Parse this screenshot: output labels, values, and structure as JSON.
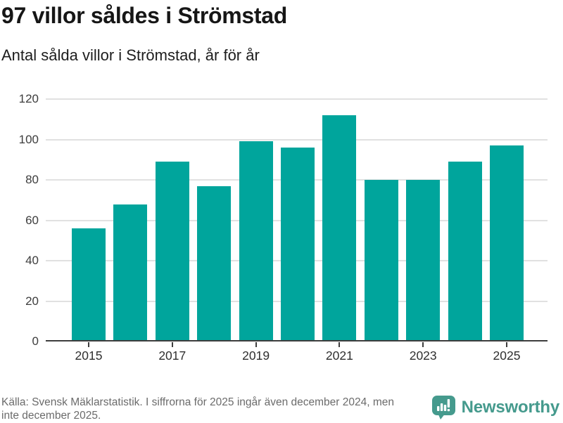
{
  "header": {
    "title": "97 villor såldes i Strömstad",
    "subtitle": "Antal sålda villor i Strömstad, år för år"
  },
  "chart_data": {
    "type": "bar",
    "title": "97 villor såldes i Strömstad",
    "subtitle": "Antal sålda villor i Strömstad, år för år",
    "categories": [
      "2015",
      "2016",
      "2017",
      "2018",
      "2019",
      "2020",
      "2021",
      "2022",
      "2023",
      "2024",
      "2025"
    ],
    "values": [
      56,
      68,
      89,
      77,
      99,
      96,
      112,
      80,
      80,
      89,
      97
    ],
    "xlabel": "",
    "ylabel": "",
    "ylim": [
      0,
      120
    ],
    "yticks": [
      0,
      20,
      40,
      60,
      80,
      100,
      120
    ],
    "xtick_labels": [
      "2015",
      "2017",
      "2019",
      "2021",
      "2023",
      "2025"
    ],
    "grid": "horizontal",
    "legend": "none",
    "bar_color": "#00a59c"
  },
  "footer": {
    "source_lines": [
      "Källa: Svensk Mäklarstatistik. I siffrorna för 2025 ingår även december 2024, men",
      "inte december 2025."
    ],
    "brand": {
      "name": "Newsworthy",
      "icon": "newsworthy-speech-bubble-bar-chart-icon",
      "color": "#459a8d"
    }
  },
  "colors": {
    "bar": "#00a59c",
    "title_text": "#161616",
    "axis_text": "#3d3d3d",
    "muted_text": "#6b6b6b",
    "gridline": "#e1e1e1",
    "axis_line": "#3d3d3d",
    "brand_teal": "#459a8d",
    "background": "#ffffff"
  }
}
